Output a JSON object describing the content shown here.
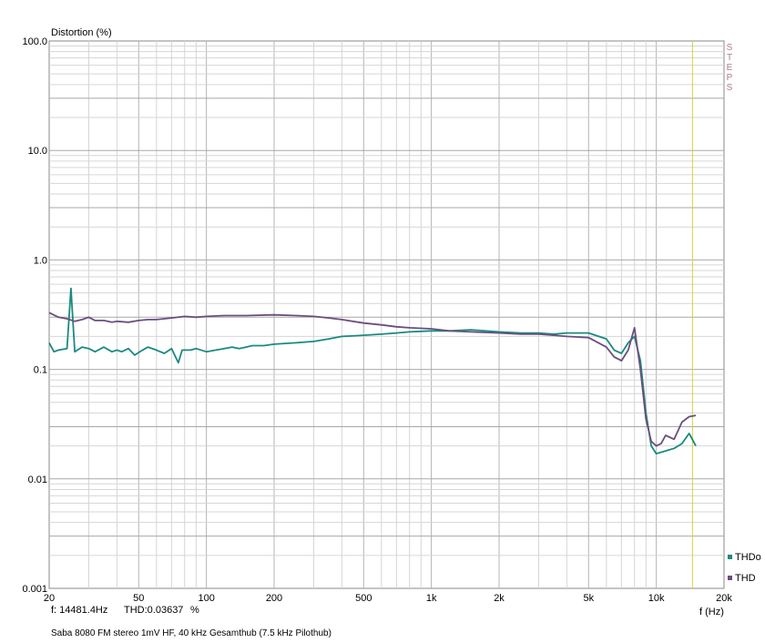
{
  "chart_data": {
    "type": "line",
    "ylabel": "Distortion (%)",
    "xlabel": "f (Hz)",
    "x_scale": "log",
    "y_scale": "log",
    "xlim": [
      20,
      20000
    ],
    "ylim": [
      0.001,
      100
    ],
    "x_ticks": [
      {
        "v": 20,
        "label": "20"
      },
      {
        "v": 50,
        "label": "50"
      },
      {
        "v": 100,
        "label": "100"
      },
      {
        "v": 200,
        "label": "200"
      },
      {
        "v": 500,
        "label": "500"
      },
      {
        "v": 1000,
        "label": "1k"
      },
      {
        "v": 2000,
        "label": "2k"
      },
      {
        "v": 5000,
        "label": "5k"
      },
      {
        "v": 10000,
        "label": "10k"
      },
      {
        "v": 20000,
        "label": "20k"
      }
    ],
    "y_ticks": [
      {
        "v": 100,
        "label": "100.0"
      },
      {
        "v": 10,
        "label": "10.0"
      },
      {
        "v": 1,
        "label": "1.0"
      },
      {
        "v": 0.1,
        "label": "0.1"
      },
      {
        "v": 0.01,
        "label": "0.01"
      },
      {
        "v": 0.001,
        "label": "0.001"
      }
    ],
    "grid": true,
    "cursor_x": 14481.4,
    "legend_position": "bottom-right",
    "side_label": "STEPS",
    "series": [
      {
        "name": "THDo",
        "color": "#1a8a80",
        "points": [
          [
            20,
            0.175
          ],
          [
            21,
            0.145
          ],
          [
            22,
            0.15
          ],
          [
            24,
            0.155
          ],
          [
            25,
            0.55
          ],
          [
            26,
            0.145
          ],
          [
            28,
            0.16
          ],
          [
            30,
            0.155
          ],
          [
            32,
            0.145
          ],
          [
            35,
            0.16
          ],
          [
            38,
            0.145
          ],
          [
            40,
            0.15
          ],
          [
            42,
            0.145
          ],
          [
            45,
            0.155
          ],
          [
            48,
            0.135
          ],
          [
            52,
            0.15
          ],
          [
            55,
            0.16
          ],
          [
            60,
            0.15
          ],
          [
            65,
            0.14
          ],
          [
            70,
            0.155
          ],
          [
            75,
            0.115
          ],
          [
            78,
            0.15
          ],
          [
            85,
            0.15
          ],
          [
            90,
            0.155
          ],
          [
            100,
            0.145
          ],
          [
            110,
            0.15
          ],
          [
            120,
            0.155
          ],
          [
            130,
            0.16
          ],
          [
            140,
            0.155
          ],
          [
            150,
            0.16
          ],
          [
            160,
            0.165
          ],
          [
            180,
            0.165
          ],
          [
            200,
            0.17
          ],
          [
            250,
            0.175
          ],
          [
            300,
            0.18
          ],
          [
            350,
            0.19
          ],
          [
            400,
            0.2
          ],
          [
            500,
            0.205
          ],
          [
            600,
            0.21
          ],
          [
            700,
            0.215
          ],
          [
            800,
            0.22
          ],
          [
            1000,
            0.225
          ],
          [
            1200,
            0.225
          ],
          [
            1500,
            0.23
          ],
          [
            2000,
            0.22
          ],
          [
            2500,
            0.215
          ],
          [
            3000,
            0.215
          ],
          [
            3500,
            0.21
          ],
          [
            4000,
            0.215
          ],
          [
            5000,
            0.215
          ],
          [
            6000,
            0.19
          ],
          [
            6500,
            0.15
          ],
          [
            7000,
            0.14
          ],
          [
            7500,
            0.175
          ],
          [
            8000,
            0.2
          ],
          [
            8500,
            0.12
          ],
          [
            9000,
            0.04
          ],
          [
            9500,
            0.02
          ],
          [
            10000,
            0.017
          ],
          [
            11000,
            0.018
          ],
          [
            12000,
            0.019
          ],
          [
            13000,
            0.021
          ],
          [
            14000,
            0.026
          ],
          [
            15000,
            0.02
          ]
        ]
      },
      {
        "name": "THD",
        "color": "#6a4f7e",
        "points": [
          [
            20,
            0.33
          ],
          [
            22,
            0.3
          ],
          [
            24,
            0.29
          ],
          [
            26,
            0.275
          ],
          [
            28,
            0.285
          ],
          [
            30,
            0.3
          ],
          [
            32,
            0.28
          ],
          [
            35,
            0.28
          ],
          [
            38,
            0.27
          ],
          [
            40,
            0.275
          ],
          [
            45,
            0.27
          ],
          [
            50,
            0.28
          ],
          [
            55,
            0.285
          ],
          [
            60,
            0.285
          ],
          [
            70,
            0.295
          ],
          [
            80,
            0.305
          ],
          [
            90,
            0.3
          ],
          [
            100,
            0.305
          ],
          [
            120,
            0.31
          ],
          [
            150,
            0.31
          ],
          [
            200,
            0.315
          ],
          [
            250,
            0.31
          ],
          [
            300,
            0.305
          ],
          [
            350,
            0.295
          ],
          [
            400,
            0.285
          ],
          [
            500,
            0.265
          ],
          [
            600,
            0.255
          ],
          [
            700,
            0.245
          ],
          [
            800,
            0.24
          ],
          [
            1000,
            0.235
          ],
          [
            1200,
            0.225
          ],
          [
            1500,
            0.22
          ],
          [
            2000,
            0.215
          ],
          [
            2500,
            0.21
          ],
          [
            3000,
            0.21
          ],
          [
            3500,
            0.205
          ],
          [
            4000,
            0.2
          ],
          [
            5000,
            0.195
          ],
          [
            6000,
            0.16
          ],
          [
            6500,
            0.13
          ],
          [
            7000,
            0.12
          ],
          [
            7500,
            0.15
          ],
          [
            8000,
            0.24
          ],
          [
            8500,
            0.1
          ],
          [
            9000,
            0.035
          ],
          [
            9500,
            0.022
          ],
          [
            10000,
            0.02
          ],
          [
            10500,
            0.021
          ],
          [
            11000,
            0.025
          ],
          [
            12000,
            0.023
          ],
          [
            13000,
            0.033
          ],
          [
            14000,
            0.037
          ],
          [
            15000,
            0.038
          ]
        ]
      }
    ]
  },
  "cursor_readout": {
    "freq": "f: 14481.4Hz",
    "thd": "THD:0.03637",
    "unit": "%"
  },
  "caption": "Saba 8080 FM stereo 1mV HF, 40 kHz Gesamthub (7.5 kHz Pilothub)"
}
